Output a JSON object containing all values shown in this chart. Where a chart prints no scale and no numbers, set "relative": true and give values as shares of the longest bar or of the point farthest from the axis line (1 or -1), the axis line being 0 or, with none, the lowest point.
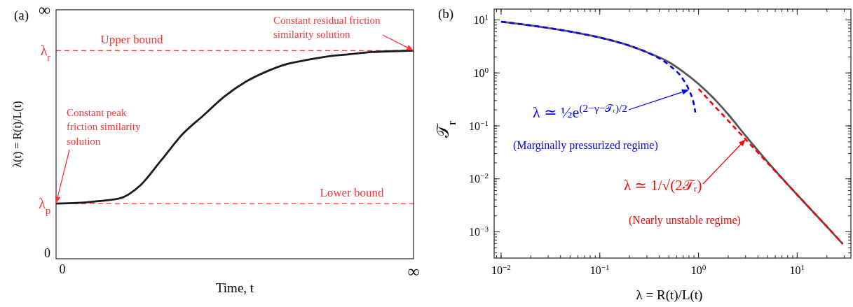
{
  "chart_data": [
    {
      "type": "line",
      "title": "(a)",
      "xlabel": "Time, t",
      "ylabel": "λ(t) = R(t)/L(t)",
      "relative": true,
      "categories": [
        null,
        null,
        null,
        null,
        null,
        null,
        null,
        null,
        null,
        null,
        null,
        null,
        null,
        null,
        null,
        null,
        null,
        null
      ],
      "series": [
        {
          "color": "#1a1a1a",
          "line_style": "solid",
          "values": [
            0.265,
            0.268,
            0.277,
            0.289,
            0.352,
            0.473,
            0.597,
            0.688,
            0.779,
            0.849,
            0.899,
            0.936,
            0.956,
            0.973,
            0.983,
            0.993,
            0.997,
            1.0
          ]
        }
      ],
      "ref_lines": [
        {
          "axis": "y",
          "value": 1.0,
          "label": "Upper bound",
          "color": "#ff3333",
          "line_style": "dashed"
        },
        {
          "axis": "y",
          "value": 0.265,
          "label": "Lower bound",
          "color": "#ff3333",
          "line_style": "dashed"
        }
      ],
      "annotations": [
        "Constant residual friction similarity solution",
        "Constant peak friction similarity solution",
        "∞",
        "λ$_{r}$",
        "λ$_{p}$",
        "0",
        "0",
        "∞"
      ]
    },
    {
      "type": "line",
      "title": "(b)",
      "xlabel": "λ = R(t)/L(t)",
      "ylabel": "𝒯$_{r}$",
      "log": "xy",
      "series": [
        {
          "color": "#555555",
          "line_style": "solid",
          "x": [
            0.01,
            0.02,
            0.05,
            0.1,
            0.2,
            0.3,
            0.5,
            0.7,
            1,
            1.5,
            2,
            3,
            5,
            10,
            20,
            29
          ],
          "values": [
            9.25,
            7.86,
            6.03,
            4.64,
            3.26,
            2.45,
            1.6,
            1.05,
            0.62,
            0.3,
            0.165,
            0.065,
            0.021,
            0.005,
            0.00125,
            0.00059
          ]
        },
        {
          "color": "#0000ff",
          "line_style": "dashed",
          "x": [
            0.01,
            0.02,
            0.05,
            0.1,
            0.2,
            0.3,
            0.5,
            0.7,
            0.8,
            0.9,
            0.93
          ],
          "values": [
            9.25,
            7.86,
            6.03,
            4.64,
            3.26,
            2.45,
            1.42,
            0.75,
            0.48,
            0.25,
            0.18
          ]
        },
        {
          "color": "#ff0000",
          "line_style": "dashed",
          "x": [
            1,
            1.5,
            2,
            3,
            5,
            10,
            20,
            29
          ],
          "values": [
            0.5,
            0.222,
            0.125,
            0.0556,
            0.02,
            0.005,
            0.00125,
            0.00059
          ]
        }
      ],
      "xlim": [
        0.0085,
        35
      ],
      "ylim": [
        0.00032,
        16
      ],
      "xticks": [
        {
          "value": 0.01,
          "label": "10$^{−2}$"
        },
        {
          "value": 0.1,
          "label": "10$^{−1}$"
        },
        {
          "value": 1,
          "label": "10$^{0}$"
        },
        {
          "value": 10,
          "label": "10$^{1}$"
        }
      ],
      "yticks": [
        {
          "value": 0.001,
          "label": "10$^{−3}$"
        },
        {
          "value": 0.01,
          "label": "10$^{−2}$"
        },
        {
          "value": 0.1,
          "label": "10$^{−1}$"
        },
        {
          "value": 1,
          "label": "10$^{0}$"
        },
        {
          "value": 10,
          "label": "10$^{1}$"
        }
      ],
      "annotations": [
        "λ ≃ ½e$^{(2−γ−𝒯ᵣ)/2}$",
        "(Marginally pressurized regime)",
        "λ ≃ 1/√(2𝒯ᵣ)",
        "(Nearly unstable regime)"
      ]
    }
  ]
}
